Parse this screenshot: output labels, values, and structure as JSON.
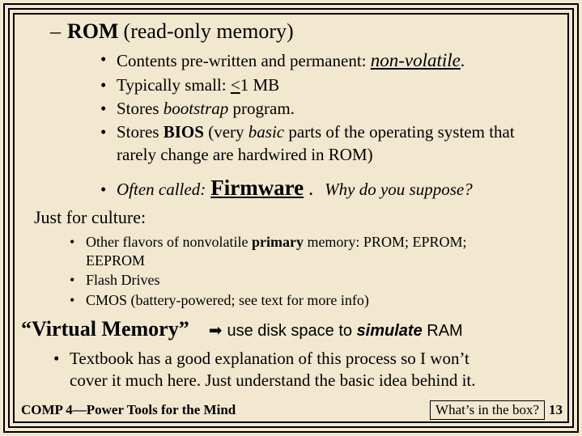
{
  "heading": {
    "dash": "–",
    "bold": "ROM",
    "rest": "(read-only memory)"
  },
  "bullets1": {
    "b1_pre": "Contents pre-written and permanent:  ",
    "b1_nonvol": "non-volatile",
    "b1_dot": ".",
    "b2_pre": "Typically small:  ",
    "b2_u": "<",
    "b2_post": "1 MB",
    "b3_pre": "Stores ",
    "b3_ital": "bootstrap",
    "b3_post": " program.",
    "b4_pre": "Stores ",
    "b4_bold": "BIOS",
    "b4_mid": "  (very ",
    "b4_ital": "basic",
    "b4_post1": " parts of the operating system that",
    "b4_line2": "rarely change are hardwired in ROM)"
  },
  "firmware": {
    "often": "Often called:",
    "fw": "Firmware",
    "dot": ".",
    "why": "Why do you suppose?"
  },
  "culture": "Just for culture:",
  "bullets2": {
    "b1_pre": "Other flavors of nonvolatile ",
    "b1_bold": "primary",
    "b1_post": " memory:  PROM; EPROM;",
    "b1_line2": "EEPROM",
    "b2": "Flash Drives",
    "b3": "CMOS (battery-powered; see text for more info)"
  },
  "vm": {
    "title": "“Virtual Memory”",
    "arrow": "➡",
    "pre": "use disk space to ",
    "sim": "simulate",
    "post": " RAM"
  },
  "bullets3": {
    "line1": "Textbook has a good explanation of this process so I won’t",
    "line2": "cover it much here.  Just understand the basic idea behind it."
  },
  "footer": {
    "left": "COMP 4—Power Tools for the Mind",
    "rightbox": "What’s in the box?",
    "page": "13"
  },
  "glyphs": {
    "bullet": "•"
  }
}
